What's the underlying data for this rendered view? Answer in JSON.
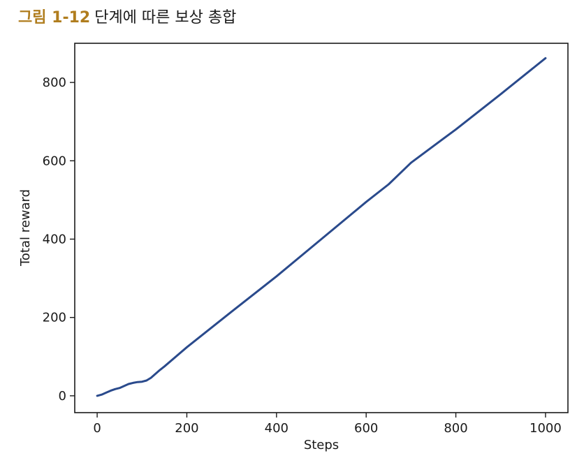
{
  "figure_caption": {
    "label": "그림 1-12",
    "text": "단계에 따른 보상 총합"
  },
  "colors": {
    "line": "#2a4a8c",
    "caption_label": "#b07d1e",
    "axes": "#1a1a1a"
  },
  "chart_data": {
    "type": "line",
    "title": "",
    "xlabel": "Steps",
    "ylabel": "Total reward",
    "xlim": [
      -50,
      1050
    ],
    "ylim": [
      -43,
      900
    ],
    "xticks": [
      0,
      200,
      400,
      600,
      800,
      1000
    ],
    "yticks": [
      0,
      200,
      400,
      600,
      800
    ],
    "grid": false,
    "legend": "none",
    "series": [
      {
        "x": [
          0,
          10,
          20,
          30,
          40,
          50,
          60,
          70,
          80,
          90,
          100,
          110,
          120,
          130,
          140,
          150,
          200,
          300,
          400,
          500,
          600,
          650,
          700,
          800,
          900,
          1000
        ],
        "y": [
          0,
          3,
          8,
          13,
          17,
          20,
          25,
          30,
          33,
          35,
          36,
          39,
          46,
          56,
          66,
          75,
          124,
          215,
          305,
          400,
          495,
          540,
          595,
          680,
          770,
          862
        ]
      }
    ]
  }
}
